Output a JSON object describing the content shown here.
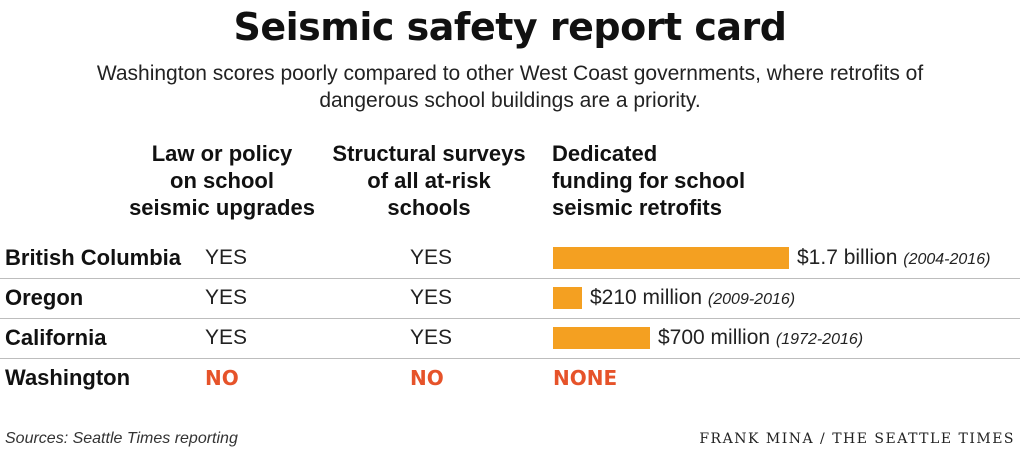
{
  "title": "Seismic safety report card",
  "subtitle_line1": "Washington scores poorly compared to other West Coast governments, where retrofits of",
  "subtitle_line2": "dangerous school buildings are a priority.",
  "columns": {
    "law": [
      "Law or policy",
      "on school",
      "seismic upgrades"
    ],
    "survey": [
      "Structural surveys",
      "of all at-risk",
      "schools"
    ],
    "funding": [
      "Dedicated",
      "funding for school",
      "seismic retrofits"
    ]
  },
  "rows": [
    {
      "name": "British Columbia",
      "law": "YES",
      "survey": "YES",
      "amount": "$1.7 billion",
      "years": "(2004-2016)"
    },
    {
      "name": "Oregon",
      "law": "YES",
      "survey": "YES",
      "amount": "$210 million",
      "years": "(2009-2016)"
    },
    {
      "name": "California",
      "law": "YES",
      "survey": "YES",
      "amount": "$700 million",
      "years": "(1972-2016)"
    },
    {
      "name": "Washington",
      "law": "NO",
      "survey": "NO",
      "amount": "NONE",
      "years": ""
    }
  ],
  "chart_data": {
    "type": "bar",
    "orientation": "horizontal",
    "categories": [
      "British Columbia",
      "Oregon",
      "California",
      "Washington"
    ],
    "values": [
      1.7,
      0.21,
      0.7,
      0
    ],
    "value_units": "billion USD",
    "value_labels": [
      "$1.7 billion",
      "$210 million",
      "$700 million",
      "NONE"
    ],
    "periods": [
      "(2004-2016)",
      "(2009-2016)",
      "(1972-2016)",
      ""
    ],
    "bar_color": "#f4a021"
  },
  "colors": {
    "bar": "#f4a021",
    "no": "#e6532a"
  },
  "source": "Sources: Seattle Times reporting",
  "credit": "FRANK MINA / THE SEATTLE TIMES"
}
